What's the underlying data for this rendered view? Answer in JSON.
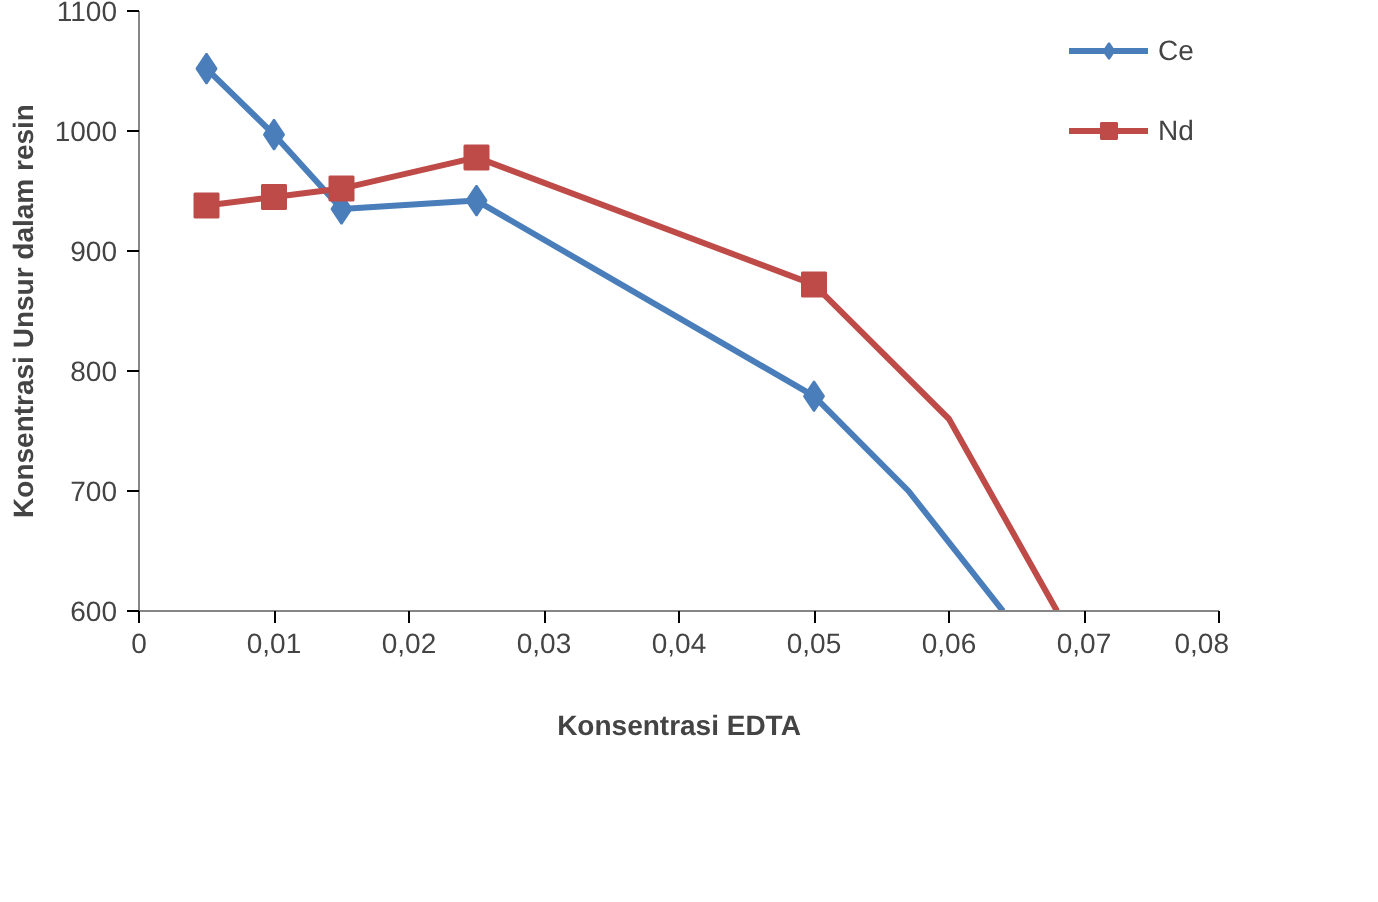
{
  "chart_data": {
    "type": "line",
    "xlabel": "Konsentrasi EDTA",
    "ylabel": "Konsentrasi Unsur dalam resin",
    "xlim": [
      0,
      0.08
    ],
    "ylim": [
      600,
      1100
    ],
    "xticks": [
      0,
      {
        "value": 0.01,
        "label": "0,01"
      },
      {
        "value": 0.02,
        "label": "0,02"
      },
      {
        "value": 0.03,
        "label": "0,03"
      },
      {
        "value": 0.04,
        "label": "0,04"
      },
      {
        "value": 0.05,
        "label": "0,05"
      },
      {
        "value": 0.06,
        "label": "0,06"
      },
      {
        "value": 0.07,
        "label": "0,07"
      },
      {
        "value": 0.08,
        "label": "0,08"
      }
    ],
    "yticks": [
      600,
      700,
      800,
      900,
      1000,
      1100
    ],
    "grid": false,
    "legend": "top right",
    "line_style": "solid",
    "series": [
      {
        "name": "Ce",
        "color": "#4a7ebb",
        "marker": "diamond",
        "x": [
          0.005,
          0.01,
          0.015,
          0.025,
          0.05
        ],
        "values": [
          1052,
          997,
          935,
          942,
          779
        ]
      },
      {
        "name": "Nd",
        "color": "#be4b48",
        "marker": "square",
        "x": [
          0.005,
          0.01,
          0.015,
          0.025,
          0.05
        ],
        "values": [
          938,
          945,
          952,
          978,
          872
        ]
      },
      {
        "color": "#4a7ebb",
        "marker": "none",
        "x": [
          0.05,
          0.057,
          0.064
        ],
        "values": [
          779,
          700,
          600
        ]
      },
      {
        "color": "#be4b48",
        "marker": "none",
        "x": [
          0.05,
          0.06,
          0.068
        ],
        "values": [
          872,
          760,
          600
        ]
      }
    ]
  }
}
